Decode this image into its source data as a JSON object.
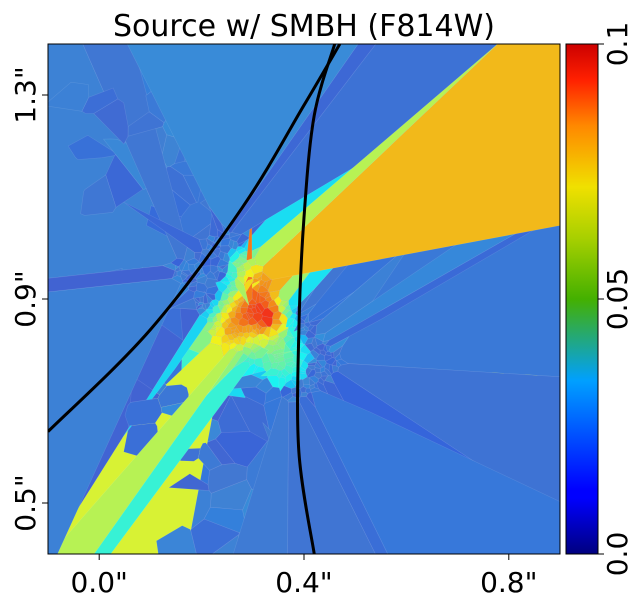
{
  "chart_data": {
    "type": "heatmap",
    "title": "Source w/ SMBH (F814W)",
    "description_kind": "voronoi-tessellated source-plane reconstruction with caustic curves",
    "xlim": [
      -0.1,
      0.9
    ],
    "ylim": [
      0.4,
      1.4
    ],
    "x_ticks": [
      {
        "value": 0.0,
        "label": "0.0\""
      },
      {
        "value": 0.4,
        "label": "0.4\""
      },
      {
        "value": 0.8,
        "label": "0.8\""
      }
    ],
    "y_ticks": [
      {
        "value": 0.5,
        "label": "0.5\""
      },
      {
        "value": 0.9,
        "label": "0.9\""
      },
      {
        "value": 1.3,
        "label": "1.3\""
      }
    ],
    "colorbar": {
      "colormap": "jet",
      "range": [
        0.0,
        0.1
      ],
      "ticks": [
        {
          "value": 0.0,
          "label": "0.0"
        },
        {
          "value": 0.05,
          "label": "0.05"
        },
        {
          "value": 0.1,
          "label": "0.1"
        }
      ]
    },
    "background_value": 0.028,
    "source_peak": {
      "x": 0.34,
      "y": 0.86,
      "value": 0.1
    },
    "caustic_curves": [
      {
        "points": [
          [
            -0.1,
            0.64
          ],
          [
            0.1,
            0.84
          ],
          [
            0.28,
            1.08
          ],
          [
            0.4,
            1.28
          ],
          [
            0.47,
            1.4
          ]
        ]
      },
      {
        "points": [
          [
            0.42,
            0.4
          ],
          [
            0.39,
            0.6
          ],
          [
            0.39,
            0.84
          ],
          [
            0.4,
            1.06
          ],
          [
            0.42,
            1.26
          ],
          [
            0.46,
            1.4
          ]
        ]
      }
    ],
    "curve_color": "#000000"
  }
}
